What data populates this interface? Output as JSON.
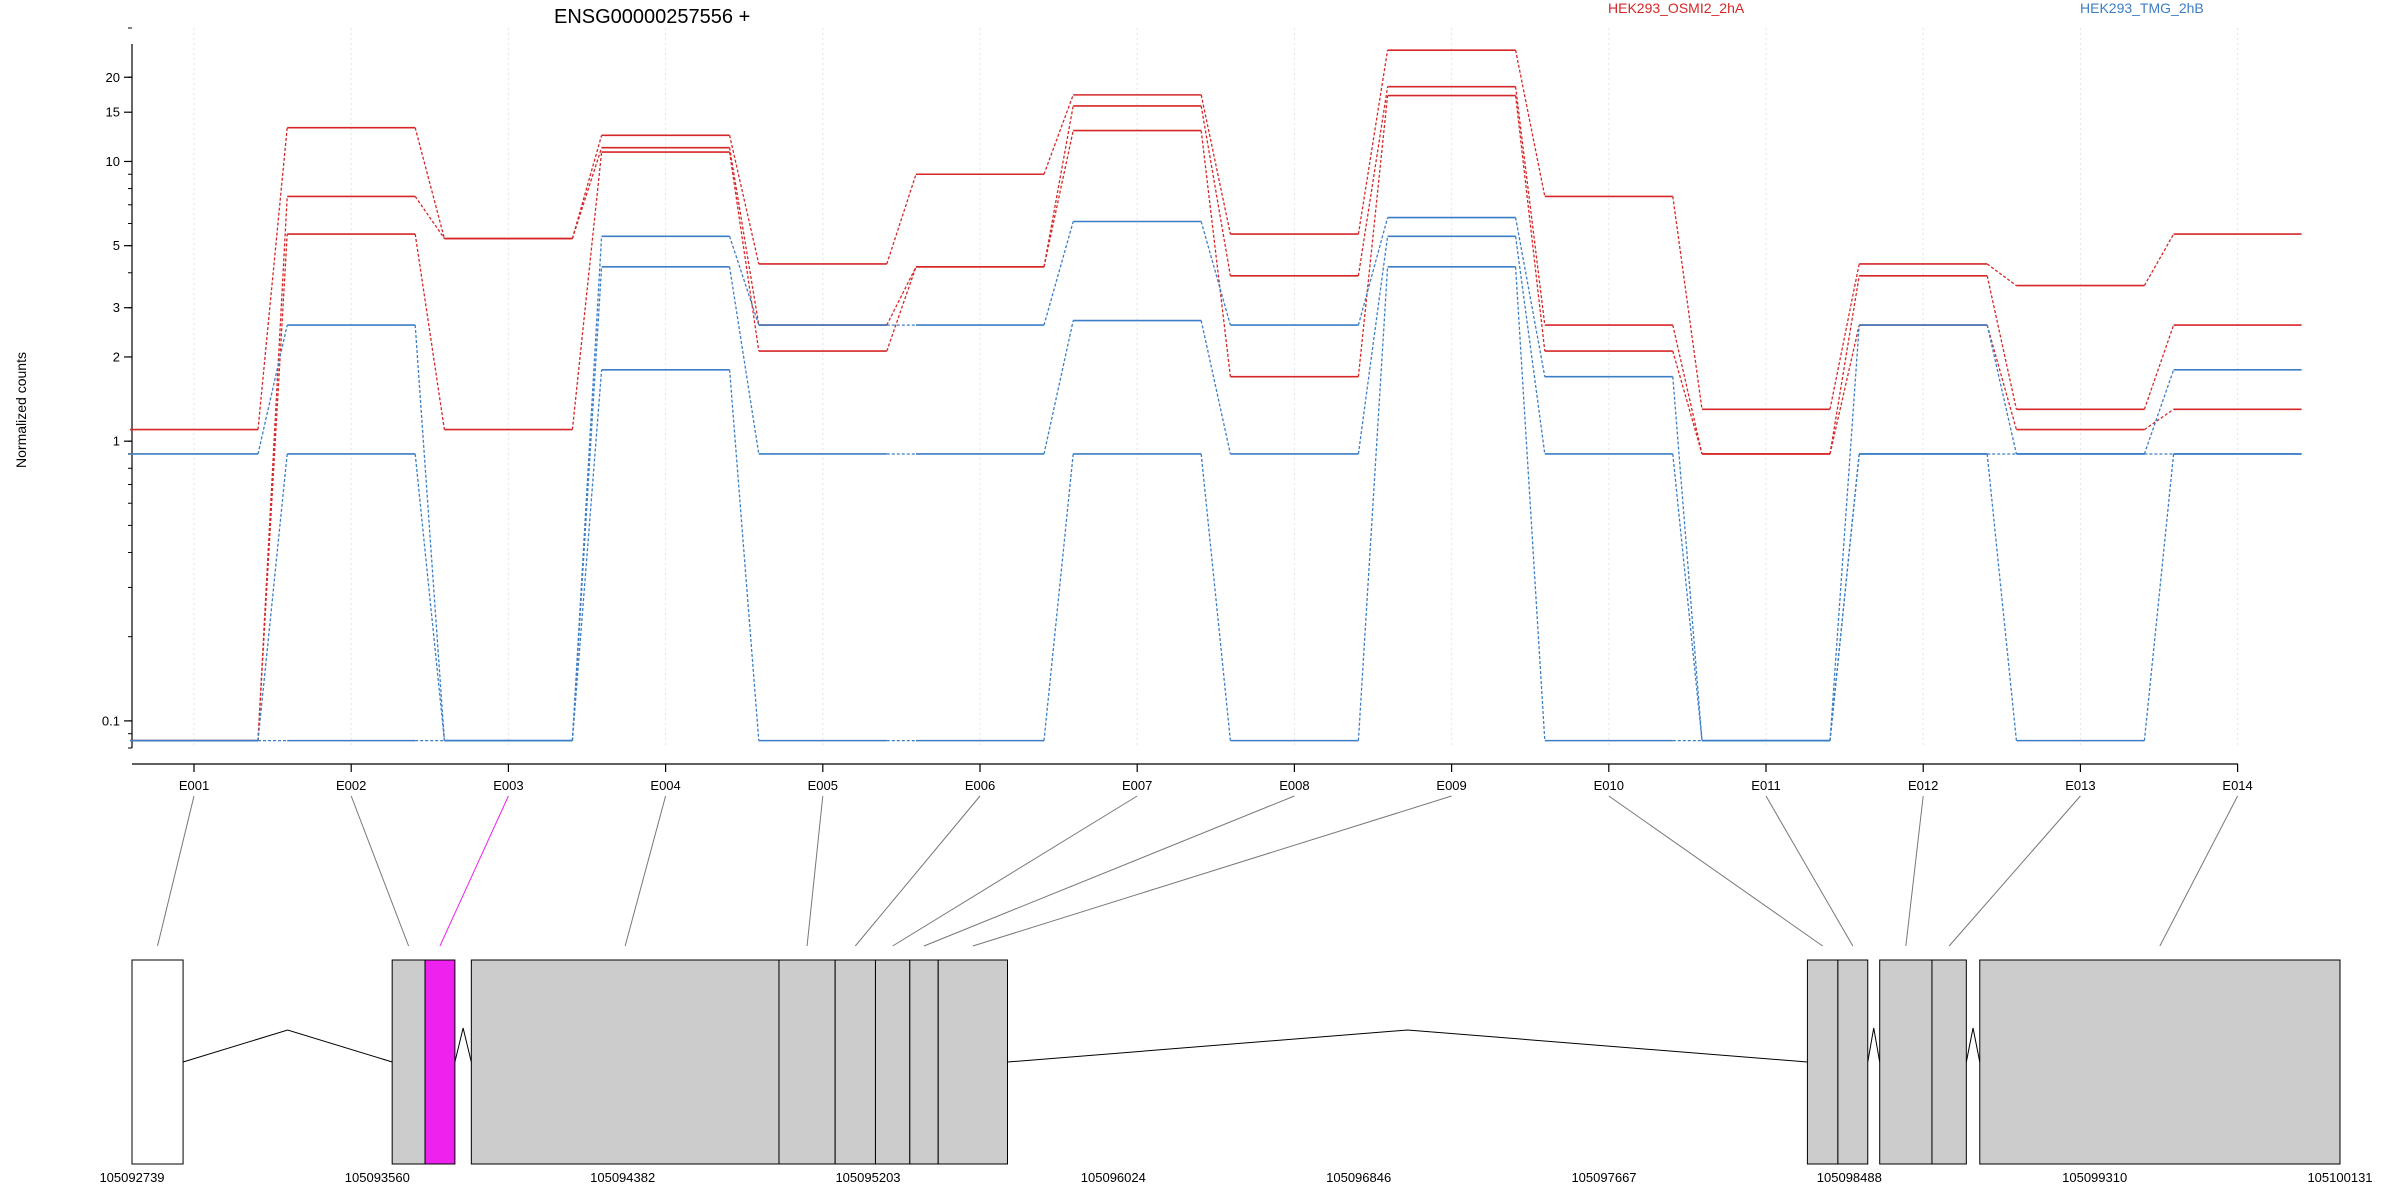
{
  "chart_data": {
    "type": "line",
    "title": "ENSG00000257556 +",
    "ylabel": "Normalized counts",
    "xlabel": "",
    "y_scale": "log",
    "ylim": [
      0.08,
      30
    ],
    "y_major_ticks": [
      0.1,
      1,
      2,
      3,
      5,
      10,
      15,
      20
    ],
    "y_tick_labels": [
      "0.1",
      "1",
      "2",
      "3",
      "5",
      "10",
      "15",
      "20"
    ],
    "grid": "vertical dotted at each exon",
    "legend_position": "top-right",
    "categories": [
      "E001",
      "E002",
      "E003",
      "E004",
      "E005",
      "E006",
      "E007",
      "E008",
      "E009",
      "E010",
      "E011",
      "E012",
      "E013",
      "E014"
    ],
    "groups": [
      {
        "name": "HEK293_OSMI2_2hA",
        "color": "#d62728"
      },
      {
        "name": "HEK293_TMG_2hB",
        "color": "#3c7ec6"
      }
    ],
    "series": [
      {
        "group": "HEK293_OSMI2_2hA",
        "color": "#d62728",
        "values": [
          1.1,
          13.2,
          5.3,
          12.4,
          4.3,
          9.0,
          17.3,
          5.5,
          25.0,
          7.5,
          1.3,
          4.3,
          3.6,
          5.5
        ]
      },
      {
        "group": "HEK293_OSMI2_2hA",
        "color": "#d62728",
        "values": [
          0.085,
          7.5,
          5.3,
          11.2,
          2.6,
          4.2,
          15.8,
          3.9,
          18.5,
          2.6,
          0.9,
          3.9,
          1.3,
          2.6
        ]
      },
      {
        "group": "HEK293_OSMI2_2hA",
        "color": "#d62728",
        "values": [
          0.085,
          5.5,
          1.1,
          10.8,
          2.1,
          4.2,
          12.9,
          1.7,
          17.2,
          2.1,
          0.9,
          2.6,
          1.1,
          1.3
        ]
      },
      {
        "group": "HEK293_TMG_2hB",
        "color": "#3c7ec6",
        "values": [
          0.9,
          2.6,
          0.085,
          5.4,
          2.6,
          2.6,
          6.1,
          2.6,
          6.3,
          1.7,
          0.085,
          2.6,
          0.9,
          1.8
        ]
      },
      {
        "group": "HEK293_TMG_2hB",
        "color": "#3c7ec6",
        "values": [
          0.085,
          0.9,
          0.085,
          4.2,
          0.9,
          0.9,
          2.7,
          0.9,
          5.4,
          0.9,
          0.085,
          0.9,
          0.9,
          0.9
        ]
      },
      {
        "group": "HEK293_TMG_2hB",
        "color": "#3c7ec6",
        "values": [
          0.085,
          0.085,
          0.085,
          1.8,
          0.085,
          0.085,
          0.9,
          0.085,
          4.2,
          0.085,
          0.085,
          0.9,
          0.085,
          0.9
        ]
      }
    ],
    "genomic_axis": {
      "tick_labels": [
        "105092739",
        "105093560",
        "105094382",
        "105095203",
        "105096024",
        "105096846",
        "105097667",
        "105098488",
        "105099310",
        "105100131"
      ],
      "range": [
        105092739,
        105100131
      ]
    },
    "gene_model": {
      "highlighted_exon": "E003",
      "highlight_color": "#ee22ee",
      "box_color": "#cccccc",
      "exons": [
        {
          "id": "E001",
          "start": 105092739,
          "end": 105092910
        },
        {
          "id": "E002",
          "start": 105093610,
          "end": 105093720
        },
        {
          "id": "E003",
          "start": 105093720,
          "end": 105093820
        },
        {
          "id": "E004",
          "start": 105093875,
          "end": 105094905
        },
        {
          "id": "E005",
          "start": 105094905,
          "end": 105095093
        },
        {
          "id": "E006",
          "start": 105095093,
          "end": 105095228
        },
        {
          "id": "E007",
          "start": 105095228,
          "end": 105095343
        },
        {
          "id": "E008",
          "start": 105095343,
          "end": 105095438
        },
        {
          "id": "E009",
          "start": 105095438,
          "end": 105095670
        },
        {
          "id": "E010",
          "start": 105098348,
          "end": 105098450
        },
        {
          "id": "E011",
          "start": 105098450,
          "end": 105098550
        },
        {
          "id": "E012",
          "start": 105098590,
          "end": 105098765
        },
        {
          "id": "E013",
          "start": 105098765,
          "end": 105098880
        },
        {
          "id": "E014",
          "start": 105098925,
          "end": 105100131
        }
      ],
      "introns": [
        {
          "from": 105092910,
          "to": 105093610
        },
        {
          "from": 105093820,
          "to": 105093875
        },
        {
          "from": 105095670,
          "to": 105098348
        },
        {
          "from": 105098550,
          "to": 105098590
        },
        {
          "from": 105098880,
          "to": 105098925
        }
      ]
    }
  }
}
